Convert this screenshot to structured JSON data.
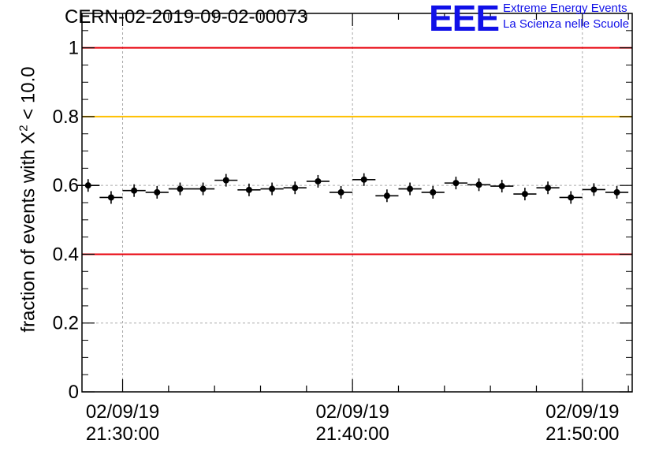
{
  "header": {
    "title": "CERN-02-2019-09-02-00073"
  },
  "logo": {
    "mark": "EEE",
    "line1": "Extreme Energy Events",
    "line2": "La Scienza nelle Scuole",
    "color": "#1010e8"
  },
  "chart_data": {
    "type": "scatter",
    "ylabel": {
      "prefix": "fraction of events with ",
      "symbol": "X",
      "superscript": "2",
      "suffix": " < 10.0"
    },
    "ylim": [
      0,
      1.1
    ],
    "yticks": [
      {
        "value": 0,
        "label": "0"
      },
      {
        "value": 0.2,
        "label": "0.2"
      },
      {
        "value": 0.4,
        "label": "0.4"
      },
      {
        "value": 0.6,
        "label": "0.6"
      },
      {
        "value": 0.8,
        "label": "0.8"
      },
      {
        "value": 1,
        "label": "1"
      }
    ],
    "xlim": [
      "02/09/19 21:28:14",
      "02/09/19 21:52:10"
    ],
    "xticks": [
      {
        "time": "02/09/19 21:30:00",
        "label": [
          "02/09/19",
          "21:30:00"
        ]
      },
      {
        "time": "02/09/19 21:40:00",
        "label": [
          "02/09/19",
          "21:40:00"
        ]
      },
      {
        "time": "02/09/19 21:50:00",
        "label": [
          "02/09/19",
          "21:50:00"
        ]
      }
    ],
    "bin_width_seconds": 60,
    "grid": true,
    "reference_lines": [
      {
        "value": 1.0,
        "color": "#e8000b"
      },
      {
        "value": 0.8,
        "color": "#ffc000"
      },
      {
        "value": 0.4,
        "color": "#e8000b"
      }
    ],
    "series": [
      {
        "points": [
          {
            "time": "02/09/19 21:28:30",
            "y": 0.6
          },
          {
            "time": "02/09/19 21:29:30",
            "y": 0.565
          },
          {
            "time": "02/09/19 21:30:30",
            "y": 0.585
          },
          {
            "time": "02/09/19 21:31:30",
            "y": 0.58
          },
          {
            "time": "02/09/19 21:32:30",
            "y": 0.59
          },
          {
            "time": "02/09/19 21:33:30",
            "y": 0.59
          },
          {
            "time": "02/09/19 21:34:30",
            "y": 0.615
          },
          {
            "time": "02/09/19 21:35:30",
            "y": 0.587
          },
          {
            "time": "02/09/19 21:36:30",
            "y": 0.59
          },
          {
            "time": "02/09/19 21:37:30",
            "y": 0.593
          },
          {
            "time": "02/09/19 21:38:30",
            "y": 0.612
          },
          {
            "time": "02/09/19 21:39:30",
            "y": 0.58
          },
          {
            "time": "02/09/19 21:40:30",
            "y": 0.617
          },
          {
            "time": "02/09/19 21:41:30",
            "y": 0.57
          },
          {
            "time": "02/09/19 21:42:30",
            "y": 0.59
          },
          {
            "time": "02/09/19 21:43:30",
            "y": 0.58
          },
          {
            "time": "02/09/19 21:44:30",
            "y": 0.607
          },
          {
            "time": "02/09/19 21:45:30",
            "y": 0.602
          },
          {
            "time": "02/09/19 21:46:30",
            "y": 0.598
          },
          {
            "time": "02/09/19 21:47:30",
            "y": 0.575
          },
          {
            "time": "02/09/19 21:48:30",
            "y": 0.593
          },
          {
            "time": "02/09/19 21:49:30",
            "y": 0.565
          },
          {
            "time": "02/09/19 21:50:30",
            "y": 0.588
          },
          {
            "time": "02/09/19 21:51:30",
            "y": 0.58
          }
        ]
      }
    ]
  }
}
